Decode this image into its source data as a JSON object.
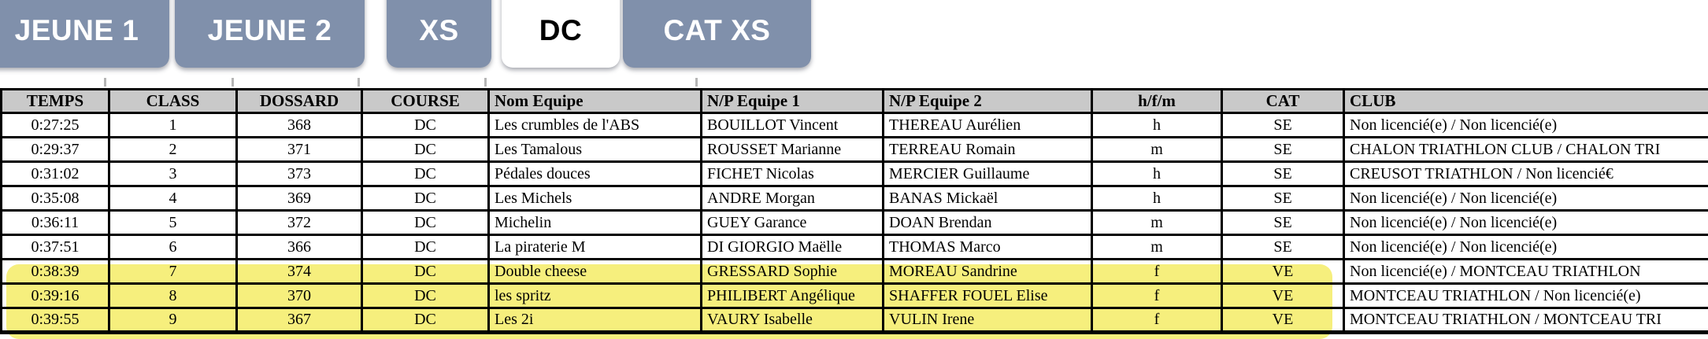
{
  "tabs": {
    "items": [
      {
        "label": "JEUNE 1",
        "active": false
      },
      {
        "label": "JEUNE 2",
        "active": false
      },
      {
        "label": "XS",
        "active": false
      },
      {
        "label": "DC",
        "active": true
      },
      {
        "label": "CAT XS",
        "active": false
      }
    ]
  },
  "table": {
    "headers": [
      "TEMPS",
      "CLASS",
      "DOSSARD",
      "COURSE",
      "Nom Equipe",
      "N/P Equipe 1",
      "N/P Equipe 2",
      "h/f/m",
      "CAT",
      "CLUB"
    ],
    "rows": [
      [
        "0:27:25",
        "1",
        "368",
        "DC",
        "Les crumbles de l'ABS",
        "BOUILLOT Vincent",
        "THEREAU Aurélien",
        "h",
        "SE",
        "Non licencié(e) / Non licencié(e)"
      ],
      [
        "0:29:37",
        "2",
        "371",
        "DC",
        "Les Tamalous",
        "ROUSSET Marianne",
        "TERREAU Romain",
        "m",
        "SE",
        "CHALON TRIATHLON CLUB / CHALON TRI"
      ],
      [
        "0:31:02",
        "3",
        "373",
        "DC",
        "Pédales douces",
        "FICHET Nicolas",
        "MERCIER Guillaume",
        "h",
        "SE",
        "CREUSOT TRIATHLON / Non licencié€"
      ],
      [
        "0:35:08",
        "4",
        "369",
        "DC",
        "Les Michels",
        "ANDRE Morgan",
        "BANAS Mickaël",
        "h",
        "SE",
        "Non licencié(e) / Non licencié(e)"
      ],
      [
        "0:36:11",
        "5",
        "372",
        "DC",
        "Michelin",
        "GUEY Garance",
        "DOAN Brendan",
        "m",
        "SE",
        "Non licencié(e) / Non licencié(e)"
      ],
      [
        "0:37:51",
        "6",
        "366",
        "DC",
        "La piraterie M",
        "DI GIORGIO Maëlle",
        "THOMAS Marco",
        "m",
        "SE",
        "Non licencié(e) / Non licencié(e)"
      ],
      [
        "0:38:39",
        "7",
        "374",
        "DC",
        "Double cheese",
        "GRESSARD Sophie",
        "MOREAU Sandrine",
        "f",
        "VE",
        "Non licencié(e) / MONTCEAU TRIATHLON"
      ],
      [
        "0:39:16",
        "8",
        "370",
        "DC",
        "les spritz",
        "PHILIBERT Angélique",
        "SHAFFER FOUEL Elise",
        "f",
        "VE",
        "MONTCEAU TRIATHLON / Non licencié(e)"
      ],
      [
        "0:39:55",
        "9",
        "367",
        "DC",
        "Les 2i",
        "VAURY Isabelle",
        "VULIN Irene",
        "f",
        "VE",
        "MONTCEAU TRIATHLON / MONTCEAU TRI"
      ]
    ],
    "highlighted_row_indices": [
      6,
      7,
      8
    ]
  },
  "colors": {
    "tab_inactive_bg": "#8090ab",
    "tab_active_bg": "#ffffff",
    "tab_text": "#ffffff",
    "tab_active_text": "#000000",
    "header_bg": "#c9c9c9",
    "grid_border": "#000000",
    "highlight_yellow": "#f6ef7d"
  }
}
